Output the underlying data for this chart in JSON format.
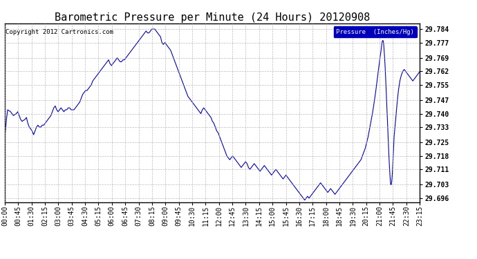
{
  "title": "Barometric Pressure per Minute (24 Hours) 20120908",
  "copyright_text": "Copyright 2012 Cartronics.com",
  "legend_label": "Pressure  (Inches/Hg)",
  "ylabel_values": [
    29.696,
    29.703,
    29.711,
    29.718,
    29.725,
    29.733,
    29.74,
    29.747,
    29.755,
    29.762,
    29.769,
    29.777,
    29.784
  ],
  "ylim": [
    29.694,
    29.787
  ],
  "line_color": "#0000bb",
  "background_color": "#ffffff",
  "grid_color": "#aaaaaa",
  "title_fontsize": 11,
  "tick_fontsize": 7,
  "legend_bg": "#0000bb",
  "legend_fg": "#ffffff",
  "xtick_labels": [
    "00:00",
    "00:45",
    "01:30",
    "02:15",
    "03:00",
    "03:45",
    "04:30",
    "05:15",
    "06:00",
    "06:45",
    "07:30",
    "08:15",
    "09:00",
    "09:45",
    "10:30",
    "11:15",
    "12:00",
    "12:45",
    "13:30",
    "14:15",
    "15:00",
    "15:45",
    "16:30",
    "17:15",
    "18:00",
    "18:45",
    "19:30",
    "20:15",
    "21:00",
    "21:45",
    "22:30",
    "23:15"
  ],
  "control_points": [
    [
      0,
      29.728
    ],
    [
      5,
      29.736
    ],
    [
      10,
      29.742
    ],
    [
      20,
      29.741
    ],
    [
      30,
      29.739
    ],
    [
      40,
      29.74
    ],
    [
      45,
      29.741
    ],
    [
      50,
      29.739
    ],
    [
      55,
      29.737
    ],
    [
      60,
      29.736
    ],
    [
      70,
      29.737
    ],
    [
      75,
      29.738
    ],
    [
      80,
      29.735
    ],
    [
      85,
      29.733
    ],
    [
      90,
      29.732
    ],
    [
      95,
      29.731
    ],
    [
      100,
      29.729
    ],
    [
      105,
      29.731
    ],
    [
      110,
      29.733
    ],
    [
      115,
      29.734
    ],
    [
      120,
      29.733
    ],
    [
      125,
      29.733
    ],
    [
      130,
      29.734
    ],
    [
      135,
      29.734
    ],
    [
      140,
      29.735
    ],
    [
      145,
      29.736
    ],
    [
      150,
      29.737
    ],
    [
      155,
      29.738
    ],
    [
      160,
      29.739
    ],
    [
      165,
      29.741
    ],
    [
      170,
      29.743
    ],
    [
      175,
      29.744
    ],
    [
      180,
      29.742
    ],
    [
      185,
      29.741
    ],
    [
      190,
      29.742
    ],
    [
      195,
      29.743
    ],
    [
      200,
      29.742
    ],
    [
      205,
      29.741
    ],
    [
      210,
      29.742
    ],
    [
      215,
      29.742
    ],
    [
      220,
      29.743
    ],
    [
      225,
      29.743
    ],
    [
      230,
      29.742
    ],
    [
      235,
      29.742
    ],
    [
      240,
      29.742
    ],
    [
      245,
      29.743
    ],
    [
      250,
      29.744
    ],
    [
      255,
      29.745
    ],
    [
      260,
      29.746
    ],
    [
      265,
      29.748
    ],
    [
      270,
      29.75
    ],
    [
      275,
      29.751
    ],
    [
      280,
      29.752
    ],
    [
      285,
      29.752
    ],
    [
      290,
      29.753
    ],
    [
      295,
      29.754
    ],
    [
      300,
      29.755
    ],
    [
      305,
      29.757
    ],
    [
      310,
      29.758
    ],
    [
      315,
      29.759
    ],
    [
      320,
      29.76
    ],
    [
      325,
      29.761
    ],
    [
      330,
      29.762
    ],
    [
      335,
      29.763
    ],
    [
      340,
      29.764
    ],
    [
      345,
      29.765
    ],
    [
      350,
      29.766
    ],
    [
      355,
      29.767
    ],
    [
      360,
      29.768
    ],
    [
      365,
      29.766
    ],
    [
      370,
      29.765
    ],
    [
      375,
      29.766
    ],
    [
      380,
      29.767
    ],
    [
      385,
      29.768
    ],
    [
      390,
      29.769
    ],
    [
      395,
      29.768
    ],
    [
      400,
      29.767
    ],
    [
      405,
      29.767
    ],
    [
      410,
      29.768
    ],
    [
      415,
      29.768
    ],
    [
      420,
      29.769
    ],
    [
      425,
      29.77
    ],
    [
      430,
      29.771
    ],
    [
      435,
      29.772
    ],
    [
      440,
      29.773
    ],
    [
      445,
      29.774
    ],
    [
      450,
      29.775
    ],
    [
      455,
      29.776
    ],
    [
      460,
      29.777
    ],
    [
      465,
      29.778
    ],
    [
      470,
      29.779
    ],
    [
      475,
      29.78
    ],
    [
      480,
      29.781
    ],
    [
      485,
      29.782
    ],
    [
      490,
      29.783
    ],
    [
      495,
      29.782
    ],
    [
      500,
      29.782
    ],
    [
      505,
      29.783
    ],
    [
      510,
      29.784
    ],
    [
      515,
      29.784
    ],
    [
      520,
      29.784
    ],
    [
      525,
      29.783
    ],
    [
      530,
      29.782
    ],
    [
      535,
      29.781
    ],
    [
      540,
      29.78
    ],
    [
      545,
      29.777
    ],
    [
      550,
      29.776
    ],
    [
      555,
      29.777
    ],
    [
      560,
      29.776
    ],
    [
      565,
      29.775
    ],
    [
      570,
      29.774
    ],
    [
      575,
      29.773
    ],
    [
      580,
      29.771
    ],
    [
      585,
      29.769
    ],
    [
      590,
      29.767
    ],
    [
      595,
      29.765
    ],
    [
      600,
      29.763
    ],
    [
      605,
      29.761
    ],
    [
      610,
      29.759
    ],
    [
      615,
      29.757
    ],
    [
      620,
      29.755
    ],
    [
      625,
      29.753
    ],
    [
      630,
      29.751
    ],
    [
      635,
      29.749
    ],
    [
      640,
      29.748
    ],
    [
      645,
      29.747
    ],
    [
      650,
      29.746
    ],
    [
      655,
      29.745
    ],
    [
      660,
      29.744
    ],
    [
      665,
      29.743
    ],
    [
      670,
      29.742
    ],
    [
      675,
      29.741
    ],
    [
      680,
      29.74
    ],
    [
      685,
      29.742
    ],
    [
      690,
      29.743
    ],
    [
      695,
      29.742
    ],
    [
      700,
      29.741
    ],
    [
      705,
      29.74
    ],
    [
      710,
      29.739
    ],
    [
      715,
      29.738
    ],
    [
      720,
      29.736
    ],
    [
      725,
      29.735
    ],
    [
      730,
      29.733
    ],
    [
      735,
      29.731
    ],
    [
      740,
      29.73
    ],
    [
      745,
      29.728
    ],
    [
      750,
      29.726
    ],
    [
      755,
      29.724
    ],
    [
      760,
      29.722
    ],
    [
      765,
      29.72
    ],
    [
      770,
      29.718
    ],
    [
      775,
      29.717
    ],
    [
      780,
      29.716
    ],
    [
      785,
      29.717
    ],
    [
      790,
      29.718
    ],
    [
      795,
      29.717
    ],
    [
      800,
      29.716
    ],
    [
      805,
      29.715
    ],
    [
      810,
      29.714
    ],
    [
      815,
      29.713
    ],
    [
      820,
      29.712
    ],
    [
      825,
      29.713
    ],
    [
      830,
      29.714
    ],
    [
      835,
      29.715
    ],
    [
      840,
      29.714
    ],
    [
      845,
      29.712
    ],
    [
      850,
      29.711
    ],
    [
      855,
      29.712
    ],
    [
      860,
      29.713
    ],
    [
      865,
      29.714
    ],
    [
      870,
      29.713
    ],
    [
      875,
      29.712
    ],
    [
      880,
      29.711
    ],
    [
      885,
      29.71
    ],
    [
      890,
      29.711
    ],
    [
      895,
      29.712
    ],
    [
      900,
      29.713
    ],
    [
      905,
      29.712
    ],
    [
      910,
      29.711
    ],
    [
      915,
      29.71
    ],
    [
      920,
      29.709
    ],
    [
      925,
      29.708
    ],
    [
      930,
      29.709
    ],
    [
      935,
      29.71
    ],
    [
      940,
      29.711
    ],
    [
      945,
      29.71
    ],
    [
      950,
      29.709
    ],
    [
      955,
      29.708
    ],
    [
      960,
      29.707
    ],
    [
      965,
      29.706
    ],
    [
      970,
      29.707
    ],
    [
      975,
      29.708
    ],
    [
      980,
      29.707
    ],
    [
      985,
      29.706
    ],
    [
      990,
      29.705
    ],
    [
      995,
      29.704
    ],
    [
      1000,
      29.703
    ],
    [
      1005,
      29.702
    ],
    [
      1010,
      29.701
    ],
    [
      1015,
      29.7
    ],
    [
      1020,
      29.699
    ],
    [
      1025,
      29.698
    ],
    [
      1030,
      29.697
    ],
    [
      1035,
      29.696
    ],
    [
      1040,
      29.695
    ],
    [
      1045,
      29.696
    ],
    [
      1050,
      29.697
    ],
    [
      1055,
      29.696
    ],
    [
      1060,
      29.697
    ],
    [
      1065,
      29.698
    ],
    [
      1070,
      29.699
    ],
    [
      1075,
      29.7
    ],
    [
      1080,
      29.701
    ],
    [
      1085,
      29.702
    ],
    [
      1090,
      29.703
    ],
    [
      1095,
      29.704
    ],
    [
      1100,
      29.703
    ],
    [
      1105,
      29.702
    ],
    [
      1110,
      29.701
    ],
    [
      1115,
      29.7
    ],
    [
      1120,
      29.699
    ],
    [
      1125,
      29.7
    ],
    [
      1130,
      29.701
    ],
    [
      1135,
      29.7
    ],
    [
      1140,
      29.699
    ],
    [
      1145,
      29.698
    ],
    [
      1150,
      29.699
    ],
    [
      1155,
      29.7
    ],
    [
      1160,
      29.701
    ],
    [
      1165,
      29.702
    ],
    [
      1170,
      29.703
    ],
    [
      1175,
      29.704
    ],
    [
      1180,
      29.705
    ],
    [
      1185,
      29.706
    ],
    [
      1190,
      29.707
    ],
    [
      1195,
      29.708
    ],
    [
      1200,
      29.709
    ],
    [
      1205,
      29.71
    ],
    [
      1210,
      29.711
    ],
    [
      1215,
      29.712
    ],
    [
      1220,
      29.713
    ],
    [
      1225,
      29.714
    ],
    [
      1230,
      29.715
    ],
    [
      1235,
      29.716
    ],
    [
      1240,
      29.718
    ],
    [
      1245,
      29.72
    ],
    [
      1250,
      29.722
    ],
    [
      1255,
      29.725
    ],
    [
      1260,
      29.728
    ],
    [
      1265,
      29.732
    ],
    [
      1270,
      29.736
    ],
    [
      1275,
      29.74
    ],
    [
      1280,
      29.745
    ],
    [
      1285,
      29.75
    ],
    [
      1290,
      29.756
    ],
    [
      1295,
      29.762
    ],
    [
      1300,
      29.768
    ],
    [
      1305,
      29.773
    ],
    [
      1308,
      29.777
    ],
    [
      1310,
      29.778
    ],
    [
      1312,
      29.778
    ],
    [
      1314,
      29.776
    ],
    [
      1316,
      29.772
    ],
    [
      1318,
      29.767
    ],
    [
      1320,
      29.761
    ],
    [
      1322,
      29.754
    ],
    [
      1324,
      29.747
    ],
    [
      1326,
      29.74
    ],
    [
      1328,
      29.733
    ],
    [
      1330,
      29.725
    ],
    [
      1332,
      29.718
    ],
    [
      1334,
      29.712
    ],
    [
      1336,
      29.707
    ],
    [
      1338,
      29.703
    ],
    [
      1340,
      29.703
    ],
    [
      1342,
      29.705
    ],
    [
      1344,
      29.709
    ],
    [
      1346,
      29.715
    ],
    [
      1348,
      29.721
    ],
    [
      1350,
      29.728
    ],
    [
      1355,
      29.736
    ],
    [
      1360,
      29.745
    ],
    [
      1365,
      29.752
    ],
    [
      1370,
      29.757
    ],
    [
      1375,
      29.76
    ],
    [
      1380,
      29.762
    ],
    [
      1385,
      29.763
    ],
    [
      1390,
      29.762
    ],
    [
      1395,
      29.761
    ],
    [
      1400,
      29.76
    ],
    [
      1405,
      29.759
    ],
    [
      1410,
      29.758
    ],
    [
      1415,
      29.757
    ],
    [
      1420,
      29.758
    ],
    [
      1425,
      29.759
    ],
    [
      1430,
      29.76
    ],
    [
      1435,
      29.761
    ],
    [
      1439,
      29.762
    ]
  ]
}
